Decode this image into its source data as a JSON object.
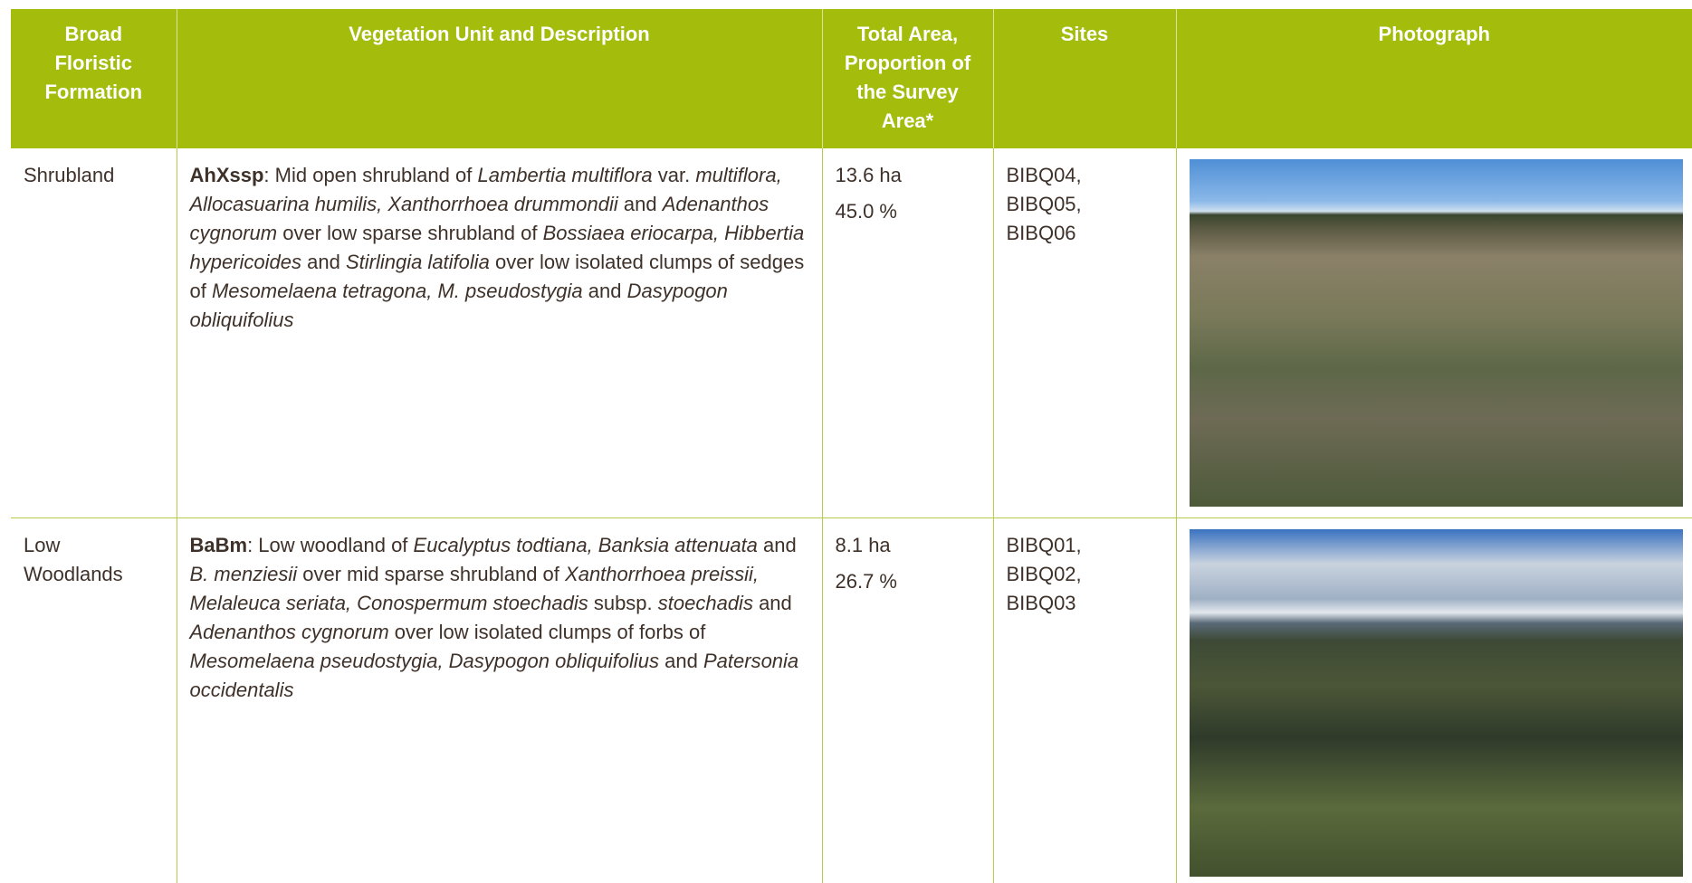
{
  "table": {
    "headers": [
      "Broad Floristic Formation",
      "Vegetation Unit and Description",
      "Total Area, Proportion of the Survey Area*",
      "Sites",
      "Photograph"
    ],
    "rows": [
      {
        "formation": "Shrubland",
        "code": "AhXssp",
        "description": [
          {
            "text": ": Mid open shrubland of ",
            "italic": false
          },
          {
            "text": "Lambertia multiflora",
            "italic": true
          },
          {
            "text": " var. ",
            "italic": false
          },
          {
            "text": "multiflora, Allocasuarina humilis, Xanthorrhoea drummondii",
            "italic": true
          },
          {
            "text": " and ",
            "italic": false
          },
          {
            "text": "Adenanthos cygnorum",
            "italic": true
          },
          {
            "text": " over low sparse shrubland of ",
            "italic": false
          },
          {
            "text": "Bossiaea eriocarpa, Hibbertia hypericoides",
            "italic": true
          },
          {
            "text": " and ",
            "italic": false
          },
          {
            "text": "Stirlingia latifolia",
            "italic": true
          },
          {
            "text": " over low isolated clumps of sedges of ",
            "italic": false
          },
          {
            "text": "Mesomelaena tetragona, M. pseudostygia",
            "italic": true
          },
          {
            "text": " and ",
            "italic": false
          },
          {
            "text": "Dasypogon obliquifolius",
            "italic": true
          }
        ],
        "area": "13.6 ha",
        "proportion": "45.0 %",
        "sites": [
          "BIBQ04,",
          "BIBQ05,",
          "BIBQ06"
        ]
      },
      {
        "formation": "Low Woodlands",
        "code": "BaBm",
        "description": [
          {
            "text": ": Low woodland of ",
            "italic": false
          },
          {
            "text": "Eucalyptus todtiana, Banksia attenuata",
            "italic": true
          },
          {
            "text": " and ",
            "italic": false
          },
          {
            "text": "B. menziesii",
            "italic": true
          },
          {
            "text": " over mid sparse shrubland of ",
            "italic": false
          },
          {
            "text": "Xanthorrhoea preissii, Melaleuca seriata, Conospermum stoechadis",
            "italic": true
          },
          {
            "text": " subsp. ",
            "italic": false
          },
          {
            "text": "stoechadis",
            "italic": true
          },
          {
            "text": " and ",
            "italic": false
          },
          {
            "text": "Adenanthos cygnorum",
            "italic": true
          },
          {
            "text": " over low isolated clumps of forbs of ",
            "italic": false
          },
          {
            "text": "Mesomelaena pseudostygia, Dasypogon obliquifolius",
            "italic": true
          },
          {
            "text": " and ",
            "italic": false
          },
          {
            "text": "Patersonia occidentalis",
            "italic": true
          }
        ],
        "area": "8.1 ha",
        "proportion": "26.7 %",
        "sites": [
          "BIBQ01,",
          "BIBQ02,",
          "BIBQ03"
        ]
      }
    ]
  }
}
